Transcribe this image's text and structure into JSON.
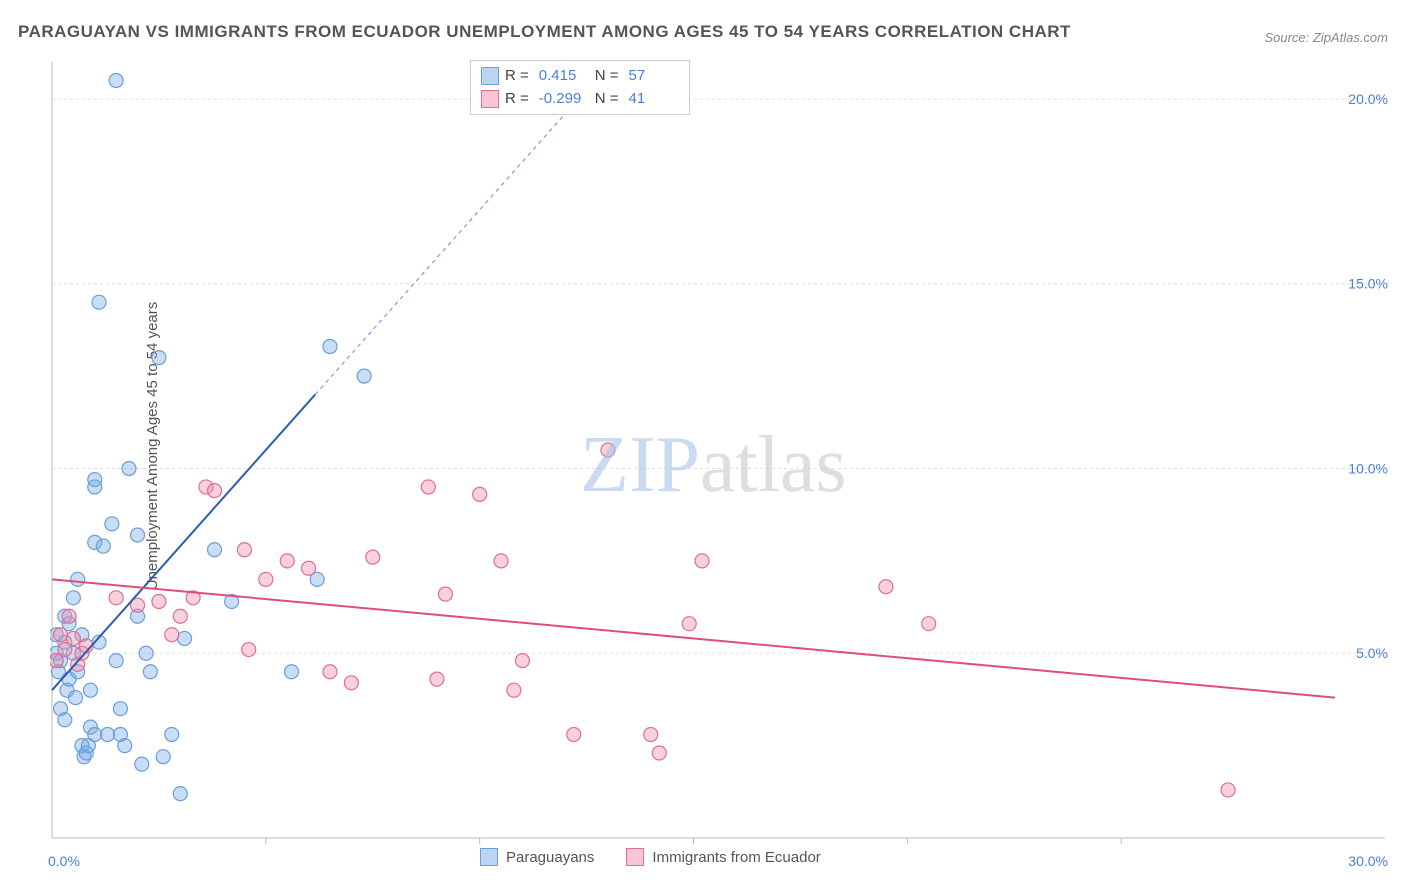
{
  "chart": {
    "type": "scatter",
    "title": "PARAGUAYAN VS IMMIGRANTS FROM ECUADOR UNEMPLOYMENT AMONG AGES 45 TO 54 YEARS CORRELATION CHART",
    "source_label": "Source: ",
    "source_name": "ZipAtlas.com",
    "ylabel": "Unemployment Among Ages 45 to 54 years",
    "watermark_a": "ZIP",
    "watermark_b": "atlas",
    "xlim": [
      0,
      30
    ],
    "ylim": [
      0,
      21
    ],
    "xtick_major": 5,
    "ytick_major": 5,
    "grid_color": "#e0e0e0",
    "axis_color": "#bbbbbb",
    "background_color": "#ffffff",
    "xtick_labels": [
      "0.0%",
      "30.0%"
    ],
    "ytick_labels": [
      {
        "v": 5,
        "label": "5.0%"
      },
      {
        "v": 10,
        "label": "10.0%"
      },
      {
        "v": 15,
        "label": "15.0%"
      },
      {
        "v": 20,
        "label": "20.0%"
      }
    ],
    "series": [
      {
        "name": "Paraguayans",
        "marker_color_fill": "rgba(120,170,230,0.4)",
        "marker_color_stroke": "#6a9edc",
        "marker_radius": 7,
        "trend_color": "#2a5db0",
        "trend_width": 2,
        "trend_dash_extend": "4 4",
        "r_value": 0.415,
        "n_value": 57,
        "trend": {
          "x1": 0,
          "y1": 4.0,
          "x2": 30,
          "y2": 43
        },
        "points": [
          [
            0.1,
            5.0
          ],
          [
            0.1,
            5.5
          ],
          [
            0.15,
            4.5
          ],
          [
            0.2,
            3.5
          ],
          [
            0.2,
            4.8
          ],
          [
            0.3,
            5.3
          ],
          [
            0.3,
            6.0
          ],
          [
            0.3,
            3.2
          ],
          [
            0.35,
            4.0
          ],
          [
            0.4,
            5.8
          ],
          [
            0.4,
            4.3
          ],
          [
            0.5,
            6.5
          ],
          [
            0.5,
            5.0
          ],
          [
            0.55,
            3.8
          ],
          [
            0.6,
            4.5
          ],
          [
            0.6,
            7.0
          ],
          [
            0.7,
            5.5
          ],
          [
            0.7,
            2.5
          ],
          [
            0.75,
            2.2
          ],
          [
            0.8,
            2.3
          ],
          [
            0.85,
            2.5
          ],
          [
            0.9,
            3.0
          ],
          [
            0.9,
            4.0
          ],
          [
            1.0,
            8.0
          ],
          [
            1.0,
            9.5
          ],
          [
            1.0,
            9.7
          ],
          [
            1.0,
            2.8
          ],
          [
            1.1,
            14.5
          ],
          [
            1.1,
            5.3
          ],
          [
            1.2,
            7.9
          ],
          [
            1.3,
            2.8
          ],
          [
            1.4,
            8.5
          ],
          [
            1.5,
            20.5
          ],
          [
            1.5,
            4.8
          ],
          [
            1.6,
            2.8
          ],
          [
            1.6,
            3.5
          ],
          [
            1.7,
            2.5
          ],
          [
            1.8,
            10.0
          ],
          [
            2.0,
            6.0
          ],
          [
            2.0,
            8.2
          ],
          [
            2.1,
            2.0
          ],
          [
            2.2,
            5.0
          ],
          [
            2.3,
            4.5
          ],
          [
            2.5,
            13.0
          ],
          [
            2.6,
            2.2
          ],
          [
            2.8,
            2.8
          ],
          [
            3.0,
            1.2
          ],
          [
            3.1,
            5.4
          ],
          [
            3.8,
            7.8
          ],
          [
            4.2,
            6.4
          ],
          [
            5.6,
            4.5
          ],
          [
            6.2,
            7.0
          ],
          [
            6.5,
            13.3
          ],
          [
            7.3,
            12.5
          ]
        ]
      },
      {
        "name": "Immigrants from Ecuador",
        "marker_color_fill": "rgba(240,140,170,0.4)",
        "marker_color_stroke": "#e36d93",
        "marker_radius": 7,
        "trend_color": "#e14d7b",
        "trend_width": 2,
        "r_value": -0.299,
        "n_value": 41,
        "trend": {
          "x1": 0,
          "y1": 7.0,
          "x2": 30,
          "y2": 3.8
        },
        "points": [
          [
            0.1,
            4.8
          ],
          [
            0.2,
            5.5
          ],
          [
            0.3,
            5.1
          ],
          [
            0.4,
            6.0
          ],
          [
            0.5,
            5.4
          ],
          [
            0.6,
            4.7
          ],
          [
            0.7,
            5.0
          ],
          [
            0.8,
            5.2
          ],
          [
            1.5,
            6.5
          ],
          [
            2.0,
            6.3
          ],
          [
            2.5,
            6.4
          ],
          [
            2.8,
            5.5
          ],
          [
            3.0,
            6.0
          ],
          [
            3.3,
            6.5
          ],
          [
            3.6,
            9.5
          ],
          [
            3.8,
            9.4
          ],
          [
            4.5,
            7.8
          ],
          [
            4.6,
            5.1
          ],
          [
            5.0,
            7.0
          ],
          [
            5.5,
            7.5
          ],
          [
            6.0,
            7.3
          ],
          [
            6.5,
            4.5
          ],
          [
            7.0,
            4.2
          ],
          [
            7.5,
            7.6
          ],
          [
            8.8,
            9.5
          ],
          [
            9.0,
            4.3
          ],
          [
            9.2,
            6.6
          ],
          [
            10.0,
            9.3
          ],
          [
            10.5,
            7.5
          ],
          [
            10.8,
            4.0
          ],
          [
            11.0,
            4.8
          ],
          [
            12.2,
            2.8
          ],
          [
            13.0,
            10.5
          ],
          [
            14.0,
            2.8
          ],
          [
            14.2,
            2.3
          ],
          [
            14.9,
            5.8
          ],
          [
            15.2,
            7.5
          ],
          [
            19.5,
            6.8
          ],
          [
            20.5,
            5.8
          ],
          [
            27.5,
            1.3
          ]
        ]
      }
    ],
    "legend_stats": {
      "r_prefix": "R =",
      "n_prefix": "N ="
    },
    "bottom_legend": {
      "series1_label": "Paraguayans",
      "series2_label": "Immigrants from Ecuador"
    }
  }
}
